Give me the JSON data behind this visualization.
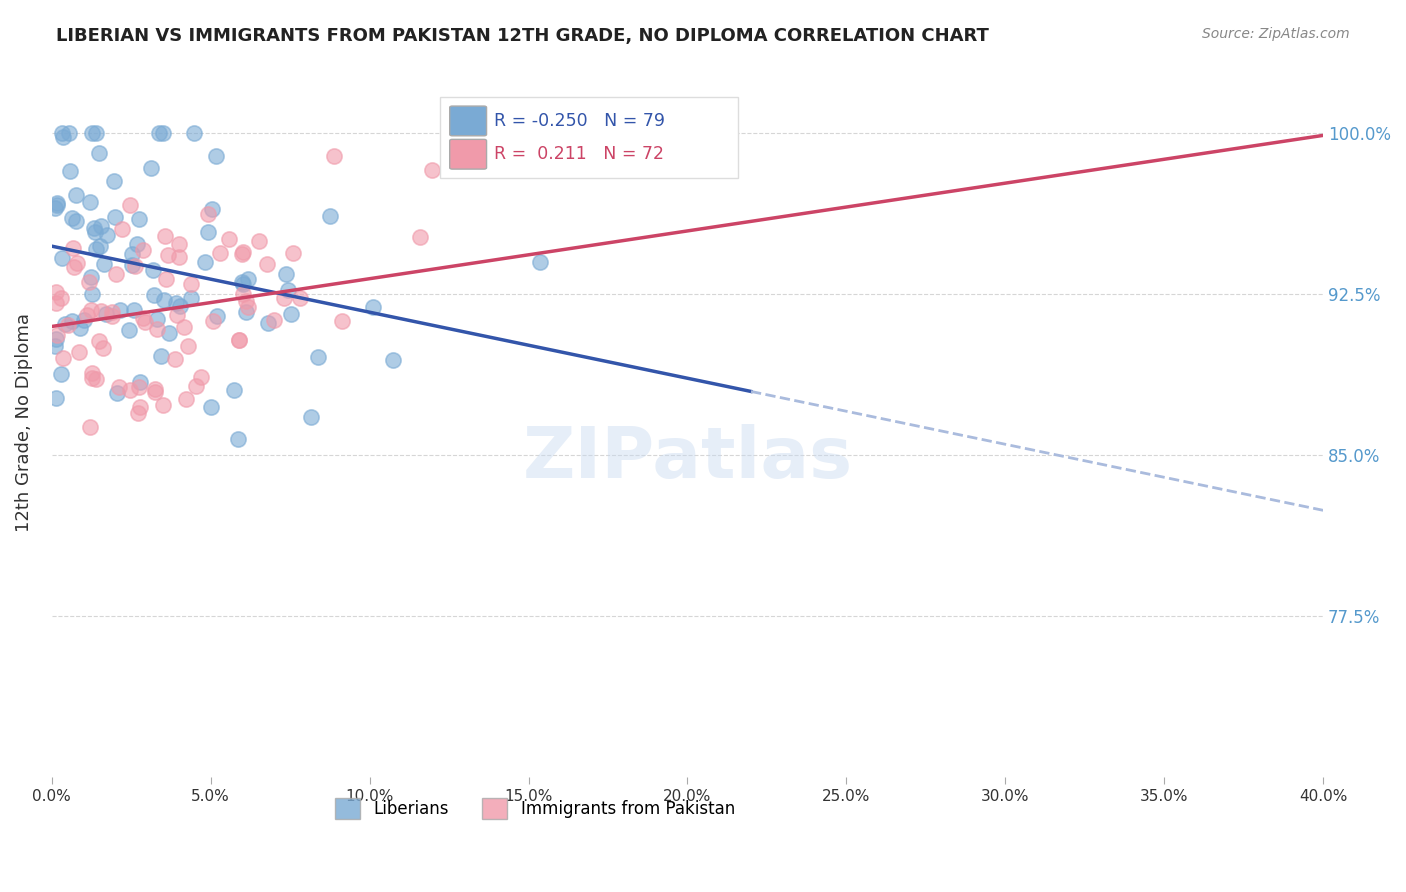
{
  "title": "LIBERIAN VS IMMIGRANTS FROM PAKISTAN 12TH GRADE, NO DIPLOMA CORRELATION CHART",
  "source": "Source: ZipAtlas.com",
  "ylabel": "12th Grade, No Diploma",
  "ytick_labels": [
    "100.0%",
    "92.5%",
    "85.0%",
    "77.5%"
  ],
  "ytick_values": [
    1.0,
    0.925,
    0.85,
    0.775
  ],
  "xlim": [
    0.0,
    0.4
  ],
  "ylim": [
    0.7,
    1.03
  ],
  "liberian_color": "#7aaad4",
  "pakistan_color": "#f09aaa",
  "trend_liberian_color": "#3355aa",
  "trend_pakistan_color": "#cc4466",
  "trend_liberian_dashed_color": "#aabbdd",
  "watermark": "ZIPatlas",
  "R_liberian": -0.25,
  "N_liberian": 79,
  "R_pakistan": 0.211,
  "N_pakistan": 72,
  "legend_box_color": "#dddddd",
  "legend_text_lib": "R = -0.250   N = 79",
  "legend_text_pak": "R =  0.211   N = 72",
  "legend_label_lib": "Liberians",
  "legend_label_pak": "Immigrants from Pakistan"
}
